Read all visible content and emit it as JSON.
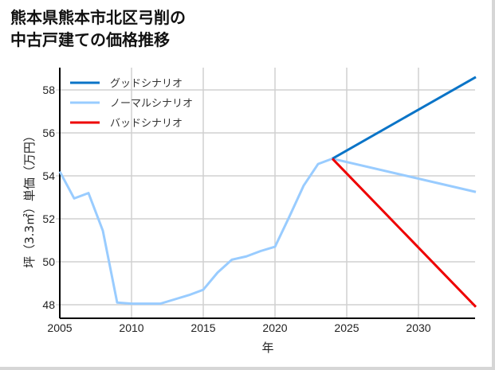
{
  "title": {
    "line1": "熊本県熊本市北区弓削の",
    "line2": "中古戸建ての価格推移"
  },
  "chart_data": {
    "type": "line",
    "title": "熊本県熊本市北区弓削の中古戸建ての価格推移",
    "xlabel": "年",
    "ylabel": "坪（3.3㎡）単価（万円）",
    "xlim": [
      2005,
      2034
    ],
    "ylim": [
      47.4,
      59.0
    ],
    "xticks": [
      2005,
      2010,
      2015,
      2020,
      2025,
      2030
    ],
    "yticks": [
      48,
      50,
      52,
      54,
      56,
      58
    ],
    "grid": true,
    "legend_position": "upper left",
    "series": [
      {
        "name": "グッドシナリオ",
        "color": "#0a74c7",
        "x": [
          2024,
          2034
        ],
        "values": [
          54.8,
          58.6
        ]
      },
      {
        "name": "ノーマルシナリオ",
        "color": "#99ccff",
        "x": [
          2005,
          2006,
          2007,
          2008,
          2009,
          2010,
          2011,
          2012,
          2013,
          2014,
          2015,
          2016,
          2017,
          2018,
          2019,
          2020,
          2021,
          2022,
          2023,
          2024,
          2034
        ],
        "values": [
          54.2,
          52.95,
          53.2,
          51.45,
          48.1,
          48.05,
          48.05,
          48.05,
          48.25,
          48.45,
          48.7,
          49.5,
          50.1,
          50.25,
          50.5,
          50.7,
          52.1,
          53.55,
          54.55,
          54.8,
          53.25
        ]
      },
      {
        "name": "バッドシナリオ",
        "color": "#ee0000",
        "x": [
          2024,
          2034
        ],
        "values": [
          54.8,
          47.9
        ]
      }
    ]
  }
}
